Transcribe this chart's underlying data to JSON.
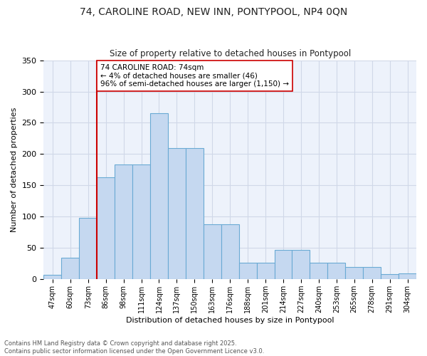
{
  "title_line1": "74, CAROLINE ROAD, NEW INN, PONTYPOOL, NP4 0QN",
  "title_line2": "Size of property relative to detached houses in Pontypool",
  "xlabel": "Distribution of detached houses by size in Pontypool",
  "ylabel": "Number of detached properties",
  "categories": [
    "47sqm",
    "60sqm",
    "73sqm",
    "86sqm",
    "98sqm",
    "111sqm",
    "124sqm",
    "137sqm",
    "150sqm",
    "163sqm",
    "176sqm",
    "188sqm",
    "201sqm",
    "214sqm",
    "227sqm",
    "240sqm",
    "253sqm",
    "265sqm",
    "278sqm",
    "291sqm",
    "304sqm"
  ],
  "values": [
    7,
    35,
    98,
    163,
    183,
    183,
    265,
    210,
    210,
    88,
    88,
    27,
    27,
    47,
    47,
    27,
    27,
    20,
    20,
    8,
    9
  ],
  "bar_color": "#c5d8f0",
  "bar_edge_color": "#6aaad4",
  "vline_color": "#cc0000",
  "vline_x_index": 2.5,
  "annotation_text": "74 CAROLINE ROAD: 74sqm\n← 4% of detached houses are smaller (46)\n96% of semi-detached houses are larger (1,150) →",
  "annotation_box_color": "#ffffff",
  "annotation_box_edge_color": "#cc0000",
  "bg_color": "#edf2fb",
  "grid_color": "#d0d8e8",
  "footer_line1": "Contains HM Land Registry data © Crown copyright and database right 2025.",
  "footer_line2": "Contains public sector information licensed under the Open Government Licence v3.0.",
  "ylim": [
    0,
    350
  ],
  "yticks": [
    0,
    50,
    100,
    150,
    200,
    250,
    300,
    350
  ]
}
